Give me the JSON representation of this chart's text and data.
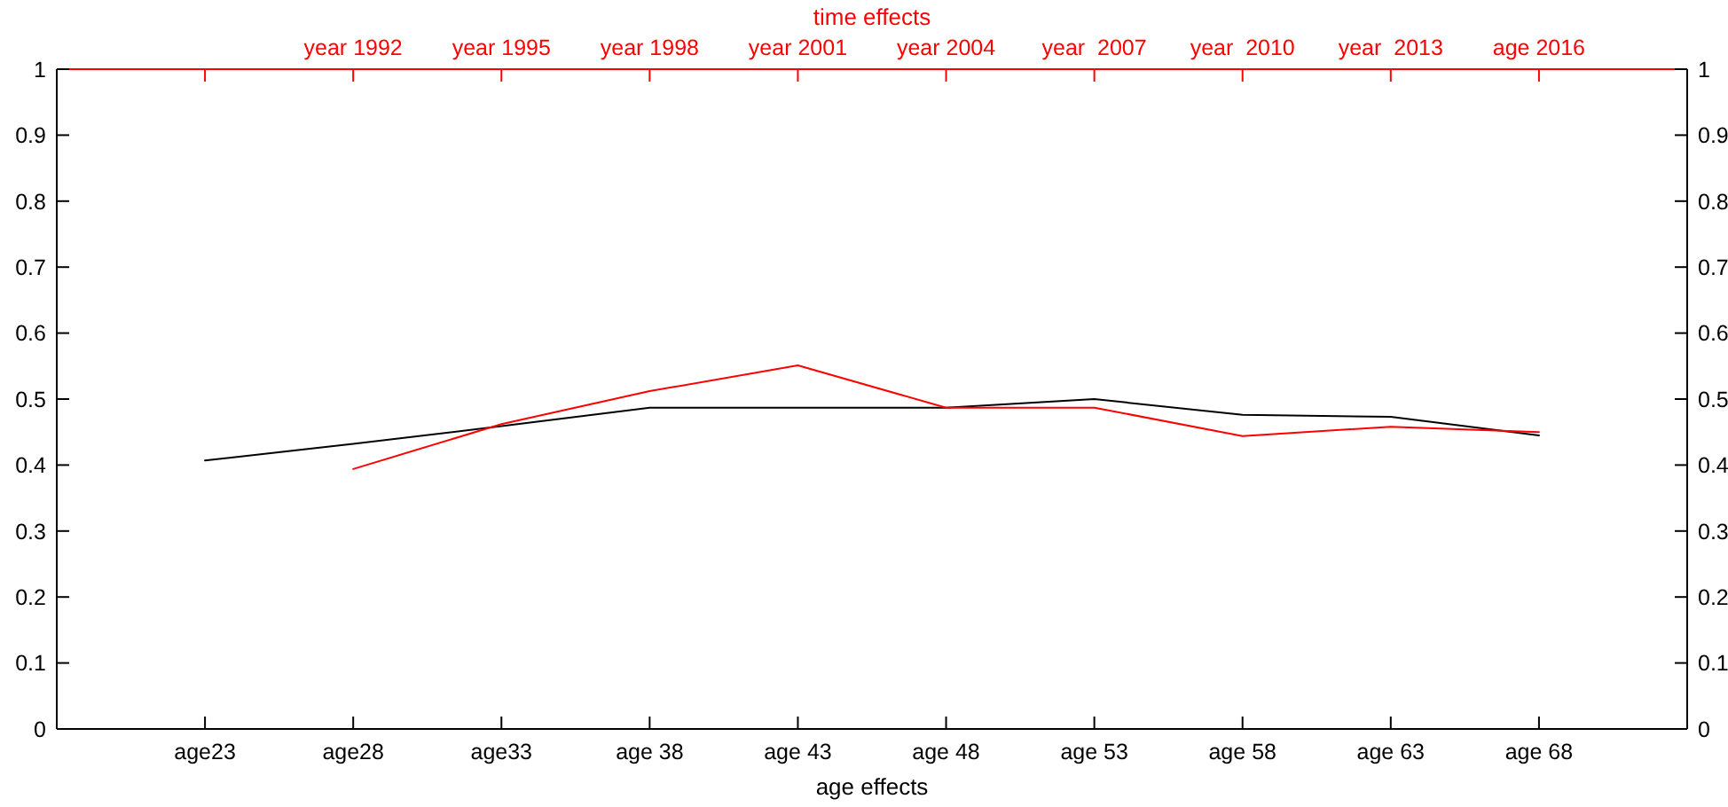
{
  "chart_data": {
    "type": "line",
    "title": "time effects",
    "xlabel": "age effects",
    "categories": [
      "age23",
      "age28",
      "age33",
      "age 38",
      "age 43",
      "age 48",
      "age 53",
      "age 58",
      "age 63",
      "age 68"
    ],
    "ylim": [
      0,
      1
    ],
    "yticks": [
      0,
      0.1,
      0.2,
      0.3,
      0.4,
      0.5,
      0.6,
      0.7,
      0.8,
      0.9,
      1
    ],
    "y2lim": [
      0,
      1
    ],
    "y2ticks": [
      0,
      0.1,
      0.2,
      0.3,
      0.4,
      0.5,
      0.6,
      0.7,
      0.8,
      0.9,
      1
    ],
    "series": [
      {
        "color": "#000000",
        "values": [
          0.407,
          0.432,
          0.459,
          0.487,
          0.487,
          0.487,
          0.5,
          0.476,
          0.473,
          0.445
        ]
      },
      {
        "color": "#ff0000",
        "x": [
          "age28",
          "age33",
          "age 38",
          "age 43",
          "age 48",
          "age 53",
          "age 58",
          "age 63",
          "age 68"
        ],
        "values": [
          0.394,
          0.462,
          0.512,
          0.551,
          0.487,
          0.487,
          0.444,
          0.458,
          0.45
        ]
      }
    ],
    "annotations": [
      {
        "text": "year 1992",
        "x": "age28"
      },
      {
        "text": "year 1995",
        "x": "age33"
      },
      {
        "text": "year 1998",
        "x": "age 38"
      },
      {
        "text": "year 2001",
        "x": "age 43"
      },
      {
        "text": "year 2004",
        "x": "age 48"
      },
      {
        "text": "year  2007",
        "x": "age 53"
      },
      {
        "text": "year  2010",
        "x": "age 58"
      },
      {
        "text": "year  2013",
        "x": "age 63"
      },
      {
        "text": "age 2016",
        "x": "age 68"
      }
    ]
  }
}
